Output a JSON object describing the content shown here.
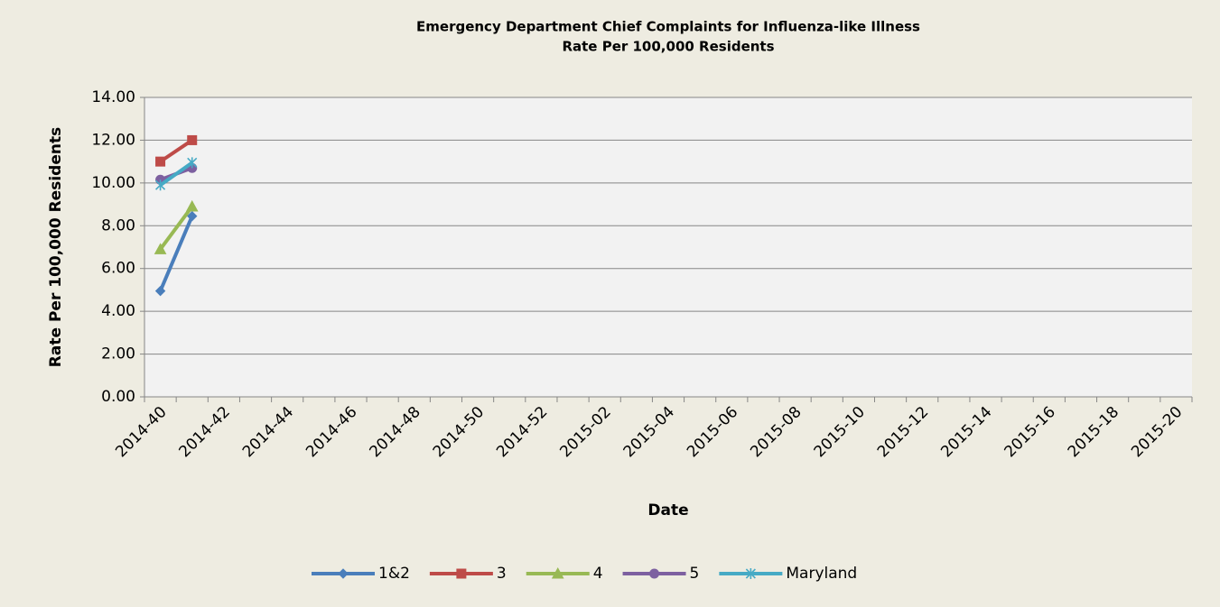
{
  "chart_data": {
    "type": "line",
    "title": "Emergency Department Chief Complaints for Influenza-like Illness",
    "subtitle": "Rate Per 100,000 Residents",
    "x_label": "Date",
    "y_label": "Rate Per 100,000 Residents",
    "categories": [
      "2014-40",
      null,
      "2014-42",
      null,
      "2014-44",
      null,
      "2014-46",
      null,
      "2014-48",
      null,
      "2014-50",
      null,
      "2014-52",
      null,
      "2015-02",
      null,
      "2015-04",
      null,
      "2015-06",
      null,
      "2015-08",
      null,
      "2015-10",
      null,
      "2015-12",
      null,
      "2015-14",
      null,
      "2015-16",
      null,
      "2015-18",
      null,
      "2015-20"
    ],
    "series": [
      {
        "name": "1&2",
        "color": "#4a7ebb",
        "marker": "diamond",
        "values": [
          4.95,
          8.45,
          null,
          null,
          null,
          null,
          null,
          null,
          null,
          null,
          null,
          null,
          null,
          null,
          null,
          null,
          null,
          null,
          null,
          null,
          null,
          null,
          null,
          null,
          null,
          null,
          null,
          null,
          null,
          null,
          null,
          null,
          null
        ]
      },
      {
        "name": "3",
        "color": "#be4b48",
        "marker": "square",
        "values": [
          11.0,
          12.0,
          null,
          null,
          null,
          null,
          null,
          null,
          null,
          null,
          null,
          null,
          null,
          null,
          null,
          null,
          null,
          null,
          null,
          null,
          null,
          null,
          null,
          null,
          null,
          null,
          null,
          null,
          null,
          null,
          null,
          null,
          null
        ]
      },
      {
        "name": "4",
        "color": "#98b954",
        "marker": "triangle",
        "values": [
          6.9,
          8.9,
          null,
          null,
          null,
          null,
          null,
          null,
          null,
          null,
          null,
          null,
          null,
          null,
          null,
          null,
          null,
          null,
          null,
          null,
          null,
          null,
          null,
          null,
          null,
          null,
          null,
          null,
          null,
          null,
          null,
          null,
          null
        ]
      },
      {
        "name": "5",
        "color": "#7d60a0",
        "marker": "circle",
        "values": [
          10.15,
          10.7,
          null,
          null,
          null,
          null,
          null,
          null,
          null,
          null,
          null,
          null,
          null,
          null,
          null,
          null,
          null,
          null,
          null,
          null,
          null,
          null,
          null,
          null,
          null,
          null,
          null,
          null,
          null,
          null,
          null,
          null,
          null
        ]
      },
      {
        "name": "Maryland",
        "color": "#46aac5",
        "marker": "star",
        "values": [
          9.9,
          10.95,
          null,
          null,
          null,
          null,
          null,
          null,
          null,
          null,
          null,
          null,
          null,
          null,
          null,
          null,
          null,
          null,
          null,
          null,
          null,
          null,
          null,
          null,
          null,
          null,
          null,
          null,
          null,
          null,
          null,
          null,
          null
        ]
      }
    ],
    "ylim": [
      0,
      14
    ],
    "yticks": [
      {
        "value": 0,
        "label": "0.00"
      },
      {
        "value": 2,
        "label": "2.00"
      },
      {
        "value": 4,
        "label": "4.00"
      },
      {
        "value": 6,
        "label": "6.00"
      },
      {
        "value": 8,
        "label": "8.00"
      },
      {
        "value": 10,
        "label": "10.00"
      },
      {
        "value": 12,
        "label": "12.00"
      },
      {
        "value": 14,
        "label": "14.00"
      }
    ],
    "grid": true,
    "legend": "bottom"
  }
}
